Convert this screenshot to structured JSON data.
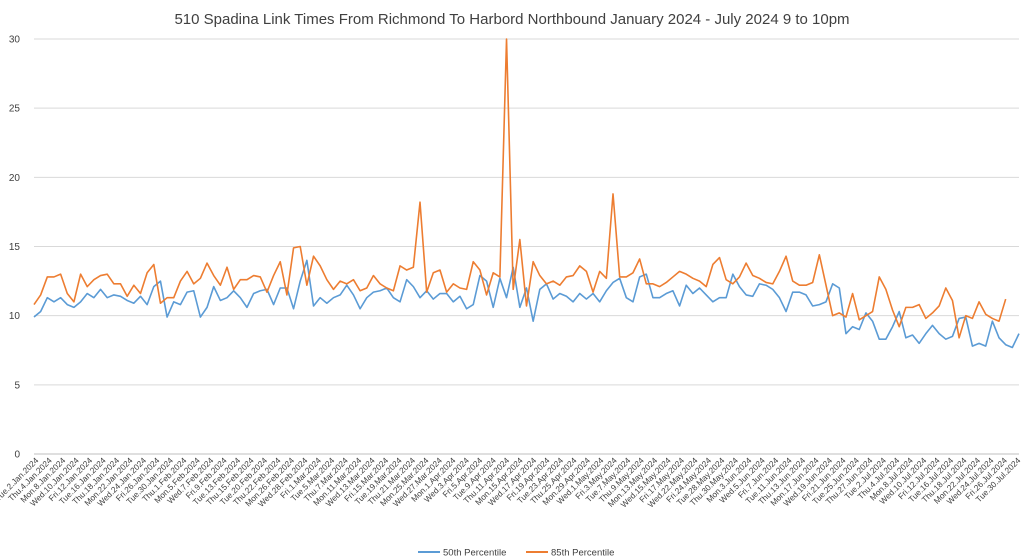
{
  "chart_data": {
    "type": "line",
    "title": "510 Spadina Link Times From Richmond To Harbord Northbound January 2024 - July 2024 9 to 10pm",
    "xlabel": "",
    "ylabel": "",
    "ylim": [
      0,
      30
    ],
    "yticks": [
      0,
      5,
      10,
      15,
      20,
      25,
      30
    ],
    "grid": true,
    "legend_position": "bottom",
    "x_labels_shown": [
      "Tue.2.Jan.2024",
      "Thu.4.Jan.2024",
      "Mon.8.Jan.2024",
      "Wed.10.Jan.2024",
      "Fri.12.Jan.2024",
      "Tue.16.Jan.2024",
      "Thu.18.Jan.2024",
      "Mon.22.Jan.2024",
      "Wed.24.Jan.2024",
      "Fri.26.Jan.2024",
      "Tue.30.Jan.2024",
      "Thu.1.Feb.2024",
      "Mon.5.Feb.2024",
      "Wed.7.Feb.2024",
      "Fri.9.Feb.2024",
      "Tue.13.Feb.2024",
      "Thu.15.Feb.2024",
      "Tue.20.Feb.2024",
      "Thu.22.Feb.2024",
      "Mon.26.Feb.2024",
      "Wed.28.Feb.2024",
      "Fri.1.Mar.2024",
      "Tue.5.Mar.2024",
      "Thu.7.Mar.2024",
      "Mon.11.Mar.2024",
      "Wed.13.Mar.2024",
      "Fri.15.Mar.2024",
      "Tue.19.Mar.2024",
      "Thu.21.Mar.2024",
      "Mon.25.Mar.2024",
      "Wed.27.Mar.2024",
      "Mon.1.Apr.2024",
      "Wed.3.Apr.2024",
      "Fri.5.Apr.2024",
      "Tue.9.Apr.2024",
      "Thu.11.Apr.2024",
      "Mon.15.Apr.2024",
      "Wed.17.Apr.2024",
      "Fri.19.Apr.2024",
      "Tue.23.Apr.2024",
      "Thu.25.Apr.2024",
      "Mon.29.Apr.2024",
      "Wed.1.May.2024",
      "Fri.3.May.2024",
      "Tue.7.May.2024",
      "Thu.9.May.2024",
      "Mon.13.May.2024",
      "Wed.15.May.2024",
      "Fri.17.May.2024",
      "Wed.22.May.2024",
      "Fri.24.May.2024",
      "Tue.28.May.2024",
      "Thu.30.May.2024",
      "Mon.3.Jun.2024",
      "Wed.5.Jun.2024",
      "Fri.7.Jun.2024",
      "Tue.11.Jun.2024",
      "Thu.13.Jun.2024",
      "Mon.17.Jun.2024",
      "Wed.19.Jun.2024",
      "Fri.21.Jun.2024",
      "Tue.25.Jun.2024",
      "Thu.27.Jun.2024",
      "Tue.2.Jul.2024",
      "Thu.4.Jul.2024",
      "Mon.8.Jul.2024",
      "Wed.10.Jul.2024",
      "Fri.12.Jul.2024",
      "Tue.16.Jul.2024",
      "Thu.18.Jul.2024",
      "Mon.22.Jul.2024",
      "Wed.24.Jul.2024",
      "Fri.26.Jul.2024",
      "Tue.30.Jul.2024"
    ],
    "series": [
      {
        "name": "50th Percentile",
        "color": "#5b9bd5",
        "values": [
          9.9,
          10.3,
          11.3,
          11.0,
          11.3,
          10.8,
          10.6,
          11.0,
          11.6,
          11.3,
          11.9,
          11.3,
          11.5,
          11.4,
          11.1,
          10.9,
          11.4,
          10.8,
          12.1,
          12.5,
          9.9,
          11.0,
          10.8,
          11.7,
          11.8,
          9.9,
          10.6,
          12.1,
          11.1,
          11.3,
          11.8,
          11.3,
          10.6,
          11.6,
          11.8,
          11.9,
          10.8,
          12.0,
          12.0,
          10.5,
          12.5,
          14.0,
          10.7,
          11.3,
          10.9,
          11.3,
          11.5,
          12.2,
          11.5,
          10.5,
          11.3,
          11.7,
          11.8,
          12.0,
          11.3,
          11.0,
          12.6,
          12.1,
          11.3,
          11.8,
          11.2,
          11.6,
          11.6,
          11.0,
          11.4,
          10.5,
          10.8,
          12.9,
          12.5,
          10.6,
          12.7,
          11.3,
          13.5,
          10.6,
          12.0,
          9.6,
          11.9,
          12.3,
          11.2,
          11.6,
          11.4,
          11.0,
          11.6,
          11.2,
          11.6,
          11.0,
          11.8,
          12.4,
          12.7,
          11.3,
          11.0,
          12.8,
          13.0,
          11.3,
          11.3,
          11.6,
          11.8,
          10.7,
          12.2,
          11.6,
          12.0,
          11.5,
          11.0,
          11.3,
          11.3,
          13.0,
          12.1,
          11.5,
          11.4,
          12.3,
          12.2,
          11.9,
          11.3,
          10.3,
          11.7,
          11.7,
          11.5,
          10.7,
          10.8,
          11.0,
          12.3,
          12.0,
          8.7,
          9.2,
          9.0,
          10.2,
          9.6,
          8.3,
          8.3,
          9.2,
          10.3,
          8.4,
          8.6,
          8.0,
          8.7,
          9.3,
          8.7,
          8.3,
          8.5,
          9.8,
          9.9,
          7.8,
          8.0,
          7.8,
          9.6,
          8.4,
          7.9,
          7.7,
          8.7
        ]
      },
      {
        "name": "85th Percentile",
        "color": "#ed7d31",
        "values": [
          10.8,
          11.5,
          12.8,
          12.8,
          13.0,
          11.6,
          11.0,
          13.0,
          12.1,
          12.6,
          12.9,
          13.0,
          12.3,
          12.3,
          11.4,
          12.2,
          11.6,
          13.1,
          13.7,
          10.9,
          11.3,
          11.3,
          12.5,
          13.2,
          12.3,
          12.7,
          13.8,
          12.9,
          12.2,
          13.5,
          11.9,
          12.6,
          12.6,
          12.9,
          12.8,
          11.7,
          12.9,
          13.9,
          11.5,
          14.9,
          15.0,
          12.2,
          14.3,
          13.6,
          12.6,
          11.9,
          12.5,
          12.3,
          12.6,
          11.8,
          12.0,
          12.9,
          12.3,
          12.0,
          11.8,
          13.6,
          13.3,
          13.5,
          18.2,
          11.7,
          13.1,
          13.3,
          11.7,
          12.3,
          12.0,
          11.9,
          13.9,
          13.3,
          11.5,
          13.1,
          12.8,
          30.0,
          11.9,
          15.5,
          10.7,
          13.9,
          12.9,
          12.3,
          12.5,
          12.2,
          12.8,
          12.9,
          13.6,
          13.2,
          11.7,
          13.2,
          12.7,
          18.8,
          12.8,
          12.8,
          13.1,
          14.1,
          12.3,
          12.3,
          12.1,
          12.4,
          12.8,
          13.2,
          13.0,
          12.7,
          12.5,
          12.1,
          13.7,
          14.2,
          12.6,
          12.3,
          12.8,
          13.8,
          12.9,
          12.7,
          12.4,
          12.3,
          13.2,
          14.3,
          12.5,
          12.2,
          12.2,
          12.4,
          14.4,
          12.2,
          10.0,
          10.2,
          9.9,
          11.6,
          9.7,
          10.0,
          10.3,
          12.8,
          11.9,
          10.4,
          9.2,
          10.6,
          10.6,
          10.8,
          9.8,
          10.2,
          10.7,
          12.0,
          11.1,
          8.4,
          10.0,
          9.8,
          11.0,
          10.1,
          9.8,
          9.6,
          11.2
        ]
      }
    ]
  }
}
